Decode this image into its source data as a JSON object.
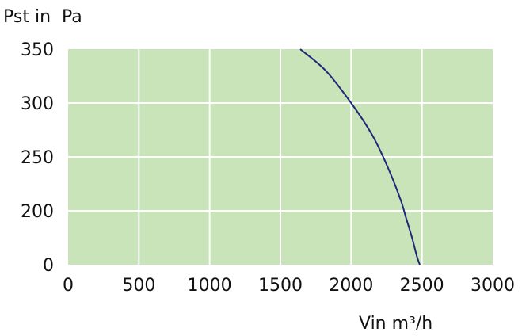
{
  "chart_data": {
    "type": "line",
    "ylabel": "Pst in  Pa",
    "xlabel": "Vin m³/h",
    "xlim": [
      0,
      3000
    ],
    "x_ticks": [
      0,
      500,
      1000,
      1500,
      2000,
      2500,
      3000
    ],
    "y_tick_labels": [
      "350",
      "300",
      "250",
      "200",
      "0"
    ],
    "grid": true,
    "plot_background": "#c8e4b8",
    "grid_color": "#ffffff",
    "series": [
      {
        "color": "#1f2a7a",
        "points": [
          {
            "x": 1640,
            "y": 350
          },
          {
            "x": 1820,
            "y": 330
          },
          {
            "x": 2000,
            "y": 300
          },
          {
            "x": 2150,
            "y": 270
          },
          {
            "x": 2260,
            "y": 240
          },
          {
            "x": 2350,
            "y": 210
          },
          {
            "x": 2390,
            "y": 170
          },
          {
            "x": 2430,
            "y": 100
          },
          {
            "x": 2465,
            "y": 30
          },
          {
            "x": 2485,
            "y": 0
          }
        ]
      }
    ]
  }
}
